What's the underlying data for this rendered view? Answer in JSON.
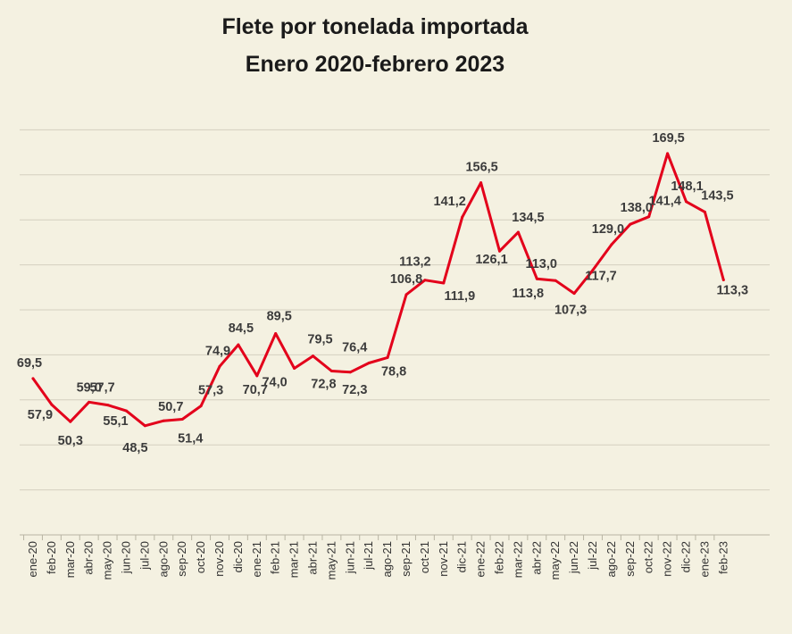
{
  "title_lines": [
    "Flete por tonelada importada",
    "Enero 2020-febrero 2023"
  ],
  "colors": {
    "background": "#f4f1e1",
    "line": "#e3001b",
    "grid": "#d4d0bf",
    "label": "#3c3c3c"
  },
  "chart_data": {
    "type": "line",
    "title": "Flete por tonelada importada",
    "subtitle": "Enero 2020-febrero 2023",
    "xlabel": "",
    "ylabel": "",
    "ylim": [
      0,
      180
    ],
    "grid": true,
    "categories": [
      "ene-20",
      "feb-20",
      "mar-20",
      "abr-20",
      "may-20",
      "jun-20",
      "jul-20",
      "ago-20",
      "sep-20",
      "oct-20",
      "nov-20",
      "dic-20",
      "ene-21",
      "feb-21",
      "mar-21",
      "abr-21",
      "may-21",
      "jun-21",
      "jul-21",
      "ago-21",
      "sep-21",
      "oct-21",
      "nov-21",
      "dic-21",
      "ene-22",
      "feb-22",
      "mar-22",
      "abr-22",
      "may-22",
      "jun-22",
      "jul-22",
      "ago-22",
      "sep-22",
      "oct-22",
      "nov-22",
      "dic-22",
      "ene-23",
      "feb-23"
    ],
    "values": [
      69.5,
      57.9,
      50.3,
      59.0,
      57.7,
      55.1,
      48.5,
      50.7,
      51.4,
      57.3,
      74.9,
      84.5,
      70.7,
      89.5,
      74.0,
      79.5,
      72.8,
      72.3,
      76.4,
      78.8,
      106.8,
      113.2,
      111.9,
      141.2,
      156.5,
      126.1,
      134.5,
      113.8,
      113.0,
      107.3,
      117.7,
      129.0,
      138.0,
      141.4,
      169.5,
      148.1,
      143.5,
      113.3
    ],
    "value_labels": [
      "69,5",
      "57,9",
      "50,3",
      "59,0",
      "57,7",
      "55,1",
      "48,5",
      "50,7",
      "51,4",
      "57,3",
      "74,9",
      "84,5",
      "70,7",
      "89,5",
      "74,0",
      "79,5",
      "72,8",
      "72,3",
      "76,4",
      "78,8",
      "106,8",
      "113,2",
      "111,9",
      "141,2",
      "156,5",
      "126,1",
      "134,5",
      "113,8",
      "113,0",
      "107,3",
      "117,7",
      "129,0",
      "138,0",
      "141,4",
      "169,5",
      "148,1",
      "143,5",
      "113,3"
    ]
  }
}
